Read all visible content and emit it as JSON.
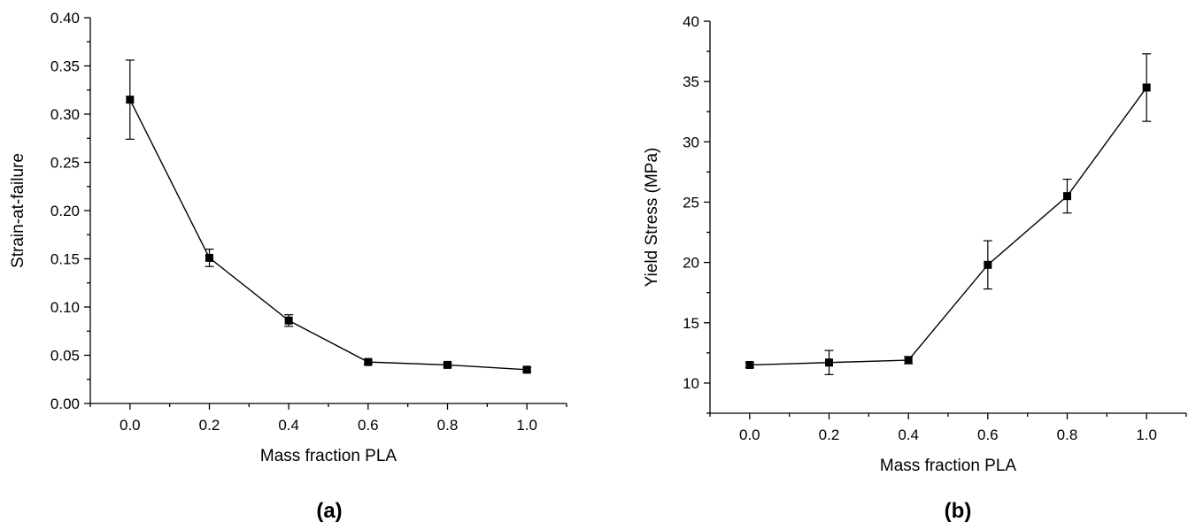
{
  "chart_data": [
    {
      "type": "line",
      "panel_label": "(a)",
      "xlabel": "Mass fraction PLA",
      "ylabel": "Strain-at-failure",
      "xlim": [
        -0.1,
        1.1
      ],
      "ylim": [
        0.0,
        0.4
      ],
      "x_ticks": [
        "0.0",
        "0.2",
        "0.4",
        "0.6",
        "0.8",
        "1.0"
      ],
      "y_ticks": [
        "0.00",
        "0.05",
        "0.10",
        "0.15",
        "0.20",
        "0.25",
        "0.30",
        "0.35",
        "0.40"
      ],
      "grid": false,
      "series": [
        {
          "x": [
            0.0,
            0.2,
            0.4,
            0.6,
            0.8,
            1.0
          ],
          "y": [
            0.315,
            0.151,
            0.086,
            0.043,
            0.04,
            0.035
          ],
          "error": [
            0.041,
            0.009,
            0.006,
            0.002,
            0.002,
            0.002
          ],
          "marker": "square",
          "color": "#000000"
        }
      ]
    },
    {
      "type": "line",
      "panel_label": "(b)",
      "xlabel": "Mass fraction PLA",
      "ylabel": "Yield Stress (MPa)",
      "xlim": [
        -0.1,
        1.1
      ],
      "ylim": [
        7.5,
        40
      ],
      "x_ticks": [
        "0.0",
        "0.2",
        "0.4",
        "0.6",
        "0.8",
        "1.0"
      ],
      "y_ticks": [
        "10",
        "15",
        "20",
        "25",
        "30",
        "35",
        "40"
      ],
      "grid": false,
      "series": [
        {
          "x": [
            0.0,
            0.2,
            0.4,
            0.6,
            0.8,
            1.0
          ],
          "y": [
            11.5,
            11.7,
            11.9,
            19.8,
            25.5,
            34.5
          ],
          "error": [
            0.2,
            1.0,
            0.3,
            2.0,
            1.4,
            2.8
          ],
          "marker": "square",
          "color": "#000000"
        }
      ]
    }
  ]
}
